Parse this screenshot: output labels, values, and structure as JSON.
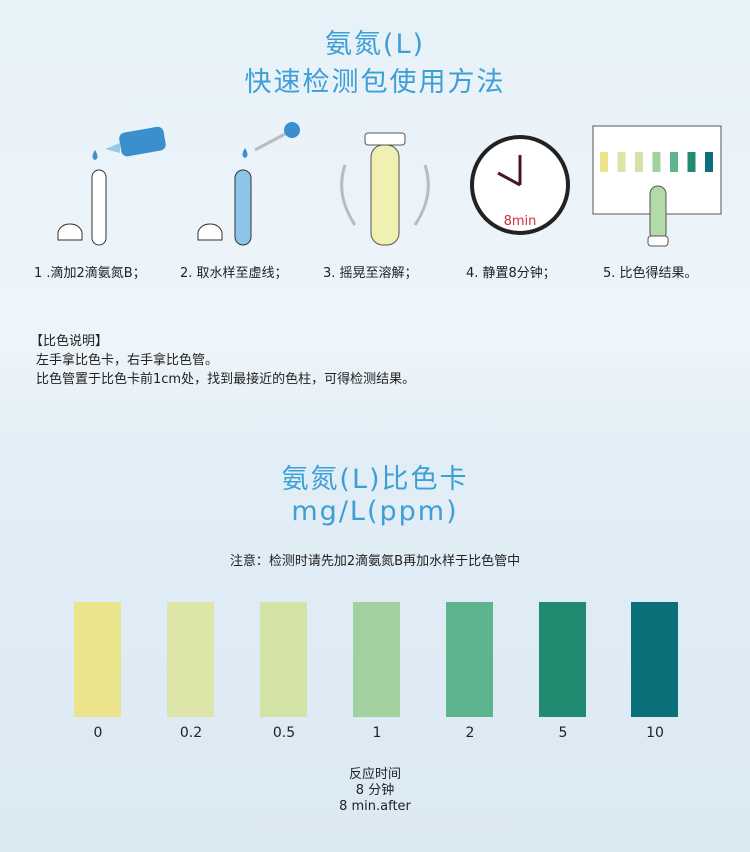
{
  "header": {
    "title_line1": "氨氮(L)",
    "title_line2": "快速检测包使用方法"
  },
  "steps": [
    {
      "label": "1 .滴加2滴氨氮B；",
      "icon": "dropper-bottle-tube-icon"
    },
    {
      "label": "2. 取水样至虚线；",
      "icon": "pipette-tube-icon"
    },
    {
      "label": "3. 摇晃至溶解；",
      "icon": "shaking-tube-icon"
    },
    {
      "label": "4. 静置8分钟；",
      "icon": "clock-icon",
      "clock_text": "8min"
    },
    {
      "label": "5. 比色得结果。",
      "icon": "color-card-compare-icon"
    }
  ],
  "instructions": {
    "heading": "【比色说明】",
    "line1": "左手拿比色卡，右手拿比色管。",
    "line2": "比色管置于比色卡前1cm处，找到最接近的色柱，可得检测结果。"
  },
  "card": {
    "title_line1": "氨氮(L)比色卡",
    "title_line2": "mg/L(ppm)",
    "notice": "注意：检测时请先加2滴氨氮B再加水样于比色管中"
  },
  "chart_data": {
    "type": "table",
    "categories": [
      "0",
      "0.2",
      "0.5",
      "1",
      "2",
      "5",
      "10"
    ],
    "colors": [
      "#ebe48c",
      "#dde6a8",
      "#d2e3a5",
      "#a3d09f",
      "#5db58e",
      "#218a70",
      "#0b707a"
    ]
  },
  "footer": {
    "line1": "反应时间",
    "line2": "8  分钟",
    "line3": "8  min.after"
  }
}
